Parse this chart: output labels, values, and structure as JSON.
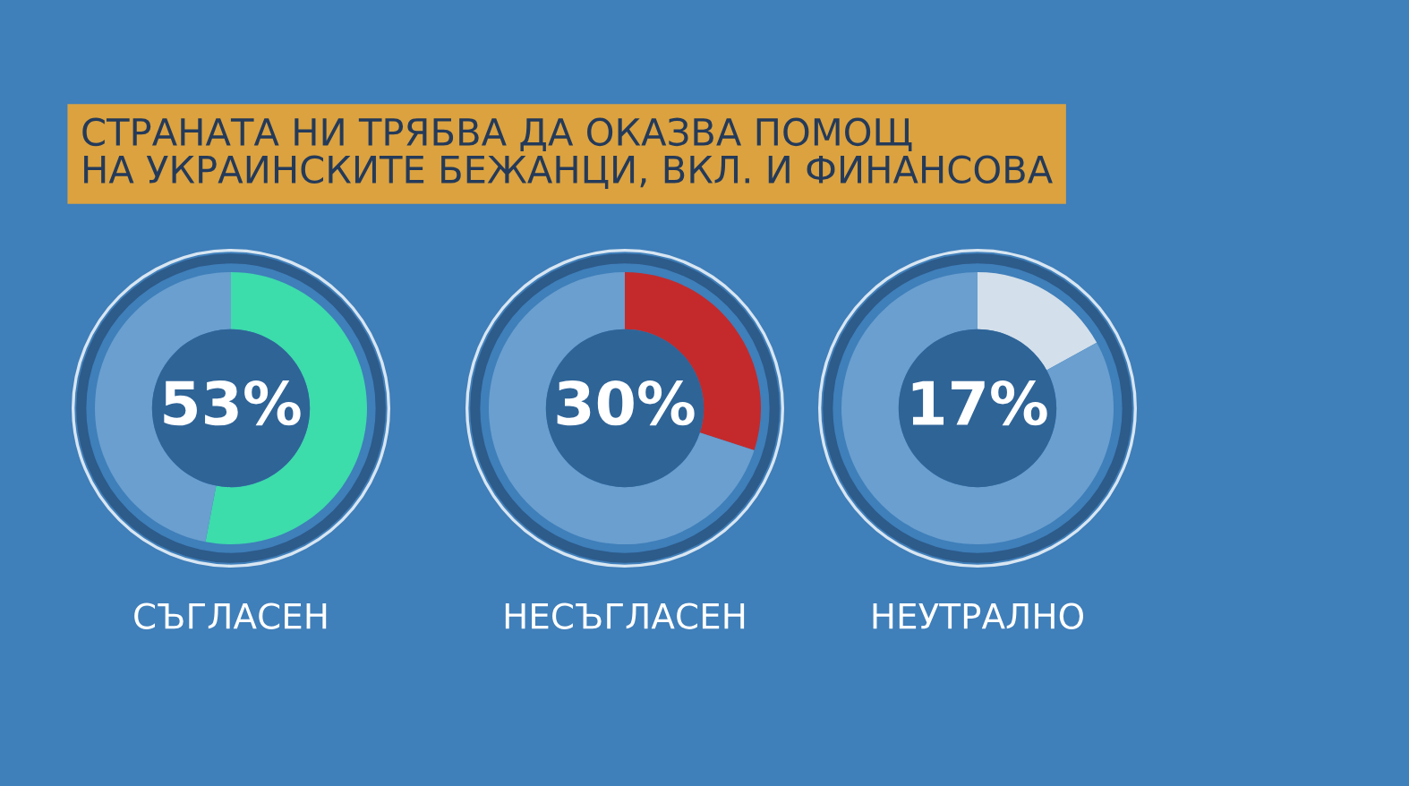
{
  "chart_data": [
    {
      "type": "other",
      "title": "СТРАНАТА НИ ТРЯБВА ДА ОКАЗВА ПОМОЩ\nНА УКРАИНСКИТЕ БЕЖАНЦИ, ВКЛ. И ФИНАНСОВА"
    },
    {
      "type": "donut",
      "title": "СЪГЛАСЕН",
      "categories": [
        null,
        null
      ],
      "values": [
        53,
        47
      ],
      "colors": [
        "#3ddcab",
        "#6a9fcf"
      ],
      "value_labels": [
        "53%",
        null
      ]
    },
    {
      "type": "donut",
      "title": "НЕСЪГЛАСЕН",
      "categories": [
        null,
        null
      ],
      "values": [
        30,
        70
      ],
      "colors": [
        "#c42a2c",
        "#6a9fcf"
      ],
      "value_labels": [
        "30%",
        null
      ]
    },
    {
      "type": "donut",
      "title": "НЕУТРАЛНО",
      "categories": [
        null,
        null
      ],
      "values": [
        17,
        83
      ],
      "colors": [
        "#d3dfea",
        "#6a9fcf"
      ],
      "value_labels": [
        "17%",
        null
      ]
    }
  ]
}
